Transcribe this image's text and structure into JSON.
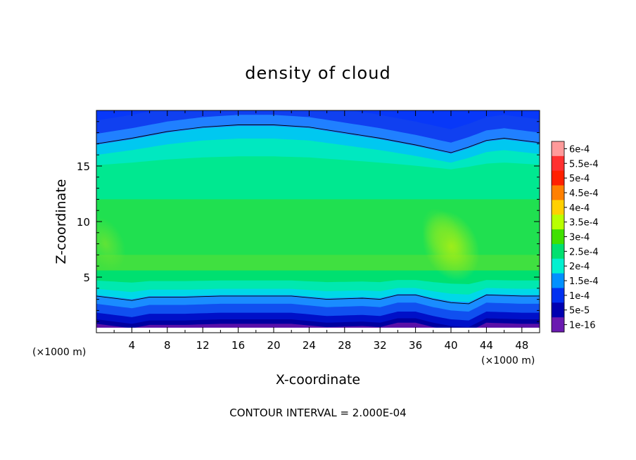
{
  "chart_data": {
    "type": "heatmap",
    "title": "density of cloud",
    "xlabel": "X-coordinate",
    "ylabel": "Z-coordinate",
    "x_unit_left": "(×1000 m)",
    "x_unit_right": "(×1000 m)",
    "xlim": [
      0,
      50
    ],
    "ylim": [
      0,
      20
    ],
    "x_ticks": [
      4,
      8,
      12,
      16,
      20,
      24,
      28,
      32,
      36,
      40,
      44,
      48
    ],
    "y_ticks": [
      5,
      10,
      15
    ],
    "footer": "CONTOUR INTERVAL = 2.000E-04",
    "colorbar": {
      "labels": [
        "6e-4",
        "5.5e-4",
        "5e-4",
        "4.5e-4",
        "4e-4",
        "3.5e-4",
        "3e-4",
        "2.5e-4",
        "2e-4",
        "1.5e-4",
        "1e-4",
        "5e-5",
        "1e-16"
      ],
      "colors": [
        "#ff9a9a",
        "#ff3030",
        "#ff2000",
        "#ff8000",
        "#ffd000",
        "#b8ff00",
        "#40e000",
        "#00e070",
        "#00f0d0",
        "#0090ff",
        "#0030f0",
        "#0000b0",
        "#6a1ab0"
      ]
    },
    "bands": [
      {
        "z": 19.8,
        "color": "#1040f0"
      },
      {
        "z": 18.6,
        "color": "#2080ff"
      },
      {
        "z": 17.6,
        "color": "#00c8f0"
      },
      {
        "z": 16.6,
        "color": "#00e8c0"
      },
      {
        "z": 15.4,
        "color": "#00e890"
      },
      {
        "z": 12.0,
        "color": "#20e050"
      },
      {
        "z": 7.0,
        "color": "#40e040"
      },
      {
        "z": 5.6,
        "color": "#00e070"
      },
      {
        "z": 4.6,
        "color": "#00e8b0"
      },
      {
        "z": 3.8,
        "color": "#00d8e8"
      },
      {
        "z": 3.2,
        "color": "#1a8cff"
      },
      {
        "z": 2.4,
        "color": "#1050f0"
      },
      {
        "z": 1.6,
        "color": "#0010c8"
      },
      {
        "z": 1.0,
        "color": "#0000a0"
      },
      {
        "z": 0.6,
        "color": "#5a10a8"
      }
    ],
    "upper_contour": [
      [
        0,
        17.0
      ],
      [
        4,
        17.5
      ],
      [
        8,
        18.1
      ],
      [
        12,
        18.5
      ],
      [
        16,
        18.7
      ],
      [
        20,
        18.7
      ],
      [
        24,
        18.5
      ],
      [
        28,
        18.0
      ],
      [
        32,
        17.5
      ],
      [
        36,
        16.9
      ],
      [
        40,
        16.2
      ],
      [
        42,
        16.7
      ],
      [
        44,
        17.3
      ],
      [
        46,
        17.5
      ],
      [
        50,
        17.1
      ]
    ],
    "lower_contour": [
      [
        0,
        3.3
      ],
      [
        4,
        2.9
      ],
      [
        6,
        3.2
      ],
      [
        10,
        3.2
      ],
      [
        14,
        3.3
      ],
      [
        18,
        3.3
      ],
      [
        22,
        3.3
      ],
      [
        26,
        3.0
      ],
      [
        30,
        3.1
      ],
      [
        32,
        3.0
      ],
      [
        34,
        3.4
      ],
      [
        36,
        3.4
      ],
      [
        38,
        3.0
      ],
      [
        40,
        2.7
      ],
      [
        42,
        2.6
      ],
      [
        44,
        3.4
      ],
      [
        48,
        3.3
      ],
      [
        50,
        3.3
      ]
    ],
    "highlights": [
      {
        "x": 40.0,
        "z": 7.8,
        "value": 0.00037,
        "color": "#a8ee10"
      },
      {
        "x": 39.0,
        "z": 8.8,
        "value": 0.00033,
        "color": "#7ee828"
      },
      {
        "x": 1.0,
        "z": 8.0,
        "value": 0.00032,
        "color": "#6ee430"
      }
    ]
  }
}
